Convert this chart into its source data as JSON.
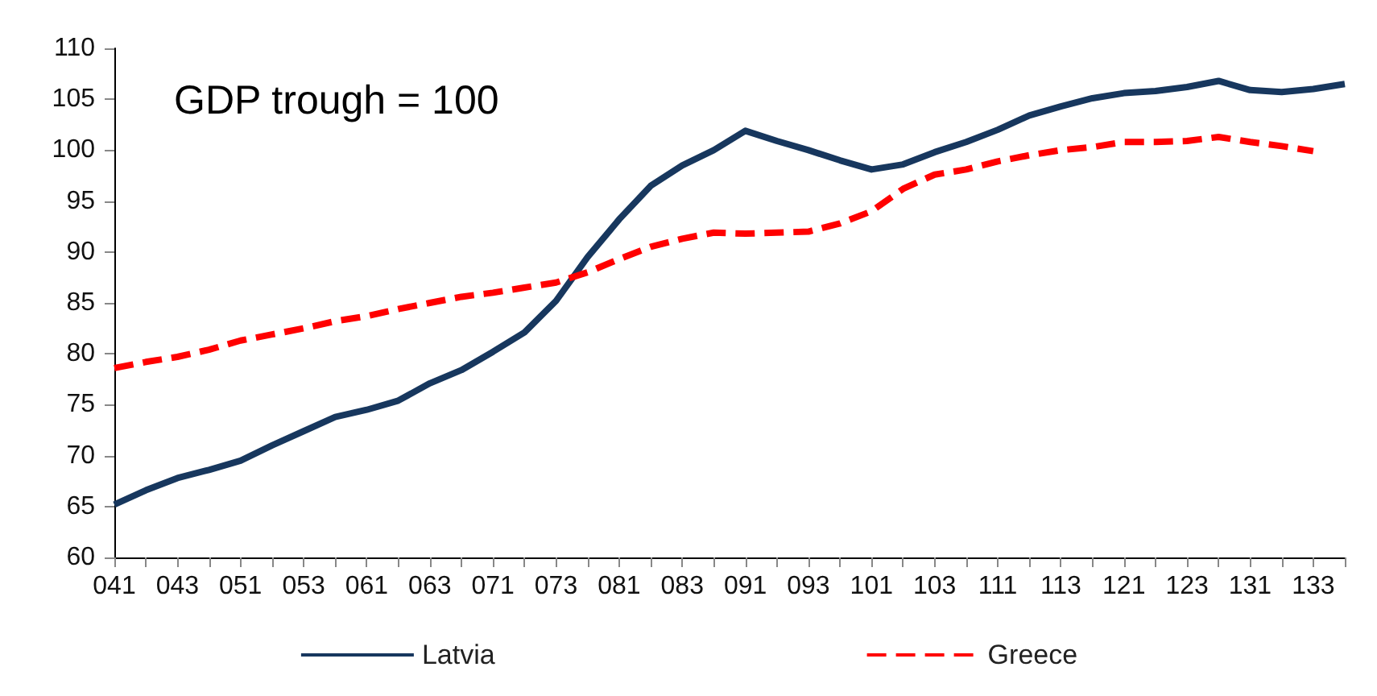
{
  "chart_data": {
    "type": "line",
    "annotations": [
      "GDP trough = 100"
    ],
    "categories": [
      "041",
      null,
      "043",
      null,
      "051",
      null,
      "053",
      null,
      "061",
      null,
      "063",
      null,
      "071",
      null,
      "073",
      null,
      "081",
      null,
      "083",
      null,
      "091",
      null,
      "093",
      null,
      "101",
      null,
      "103",
      null,
      "111",
      null,
      "113",
      null,
      "121",
      null,
      "123",
      null,
      "131",
      null,
      "133",
      null
    ],
    "series": [
      {
        "name": "Latvia",
        "color": "#17375e",
        "line_style": "solid",
        "values": [
          65.2,
          66.6,
          67.8,
          68.6,
          69.5,
          71.0,
          72.4,
          73.8,
          74.5,
          75.4,
          77.1,
          78.4,
          80.2,
          82.1,
          85.2,
          89.5,
          93.2,
          96.5,
          98.5,
          100.0,
          101.9,
          100.9,
          100.0,
          99.0,
          98.1,
          98.6,
          99.8,
          100.8,
          102.0,
          103.4,
          104.3,
          105.1,
          105.6,
          105.8,
          106.2,
          106.8,
          105.9,
          105.7,
          106.0,
          106.5
        ]
      },
      {
        "name": "Greece",
        "color": "#ff0000",
        "line_style": "dashed",
        "values": [
          78.6,
          79.2,
          79.7,
          80.4,
          81.3,
          81.9,
          82.5,
          83.2,
          83.7,
          84.4,
          85.0,
          85.6,
          86.0,
          86.5,
          87.0,
          88.0,
          89.3,
          90.5,
          91.3,
          91.9,
          91.8,
          91.9,
          92.0,
          92.8,
          94.0,
          96.2,
          97.6,
          98.1,
          98.9,
          99.5,
          100.0,
          100.3,
          100.8,
          100.8,
          100.9,
          101.3,
          100.8,
          100.4,
          99.9,
          null
        ]
      }
    ],
    "ylim": [
      60,
      110
    ],
    "yticks": [
      60,
      65,
      70,
      75,
      80,
      85,
      90,
      95,
      100,
      105,
      110
    ],
    "grid": false,
    "legend": "bottom",
    "marker": "none"
  }
}
